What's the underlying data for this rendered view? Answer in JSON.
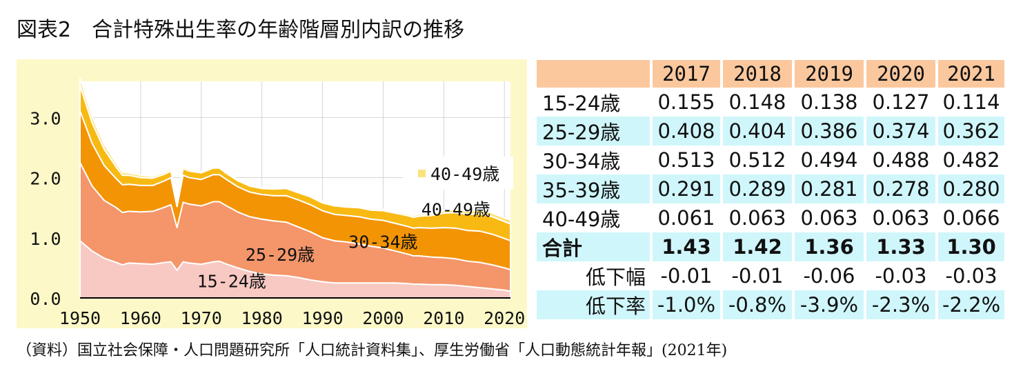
{
  "title": "図表2　合計特殊出生率の年齢階層別内訳の推移",
  "source": "（資料）国立社会保障・人口問題研究所「人口統計資料集」、厚生労働省「人口動態統計年報」(2021年)",
  "colors": {
    "panel_bg": "#fdf8c8",
    "header_bg": "#fbc89e",
    "row_cyan": "#cff6fb",
    "band_15_24": "#f8c9c3",
    "band_25_29": "#f4956a",
    "band_30_34": "#f39404",
    "band_35_39": "#f8b913",
    "band_40_49": "#fbe37a"
  },
  "chart_data": {
    "type": "area",
    "stacked": true,
    "title": "合計特殊出生率の年齢階層別内訳の推移",
    "xlabel": "",
    "ylabel": "",
    "xlim": [
      1950,
      2021
    ],
    "ylim": [
      0,
      3.6
    ],
    "x_ticks": [
      "1950",
      "1960",
      "1970",
      "1980",
      "1990",
      "2000",
      "2010",
      "2020"
    ],
    "y_ticks": [
      "0.0",
      "1.0",
      "2.0",
      "3.0"
    ],
    "grid": true,
    "x": [
      1950,
      1952,
      1954,
      1956,
      1957,
      1958,
      1960,
      1962,
      1964,
      1965,
      1966,
      1967,
      1968,
      1970,
      1972,
      1973,
      1974,
      1976,
      1978,
      1980,
      1982,
      1984,
      1986,
      1988,
      1990,
      1992,
      1994,
      1996,
      1998,
      2000,
      2002,
      2004,
      2005,
      2006,
      2008,
      2010,
      2012,
      2014,
      2016,
      2018,
      2020,
      2021
    ],
    "series": [
      {
        "name": "15-24歳",
        "label": "15-24歳",
        "values": [
          0.95,
          0.78,
          0.66,
          0.59,
          0.55,
          0.58,
          0.57,
          0.56,
          0.59,
          0.6,
          0.46,
          0.6,
          0.58,
          0.56,
          0.6,
          0.61,
          0.57,
          0.5,
          0.44,
          0.4,
          0.38,
          0.37,
          0.34,
          0.3,
          0.27,
          0.25,
          0.25,
          0.25,
          0.25,
          0.25,
          0.25,
          0.24,
          0.23,
          0.23,
          0.22,
          0.22,
          0.21,
          0.19,
          0.17,
          0.15,
          0.13,
          0.11
        ]
      },
      {
        "name": "25-29歳",
        "label": "25-29歳",
        "values": [
          1.3,
          1.08,
          0.96,
          0.91,
          0.87,
          0.86,
          0.86,
          0.88,
          0.92,
          0.95,
          0.71,
          0.99,
          0.98,
          0.97,
          1.0,
          0.99,
          0.97,
          0.93,
          0.91,
          0.91,
          0.9,
          0.89,
          0.84,
          0.8,
          0.73,
          0.7,
          0.68,
          0.65,
          0.61,
          0.58,
          0.53,
          0.49,
          0.47,
          0.47,
          0.46,
          0.45,
          0.44,
          0.42,
          0.42,
          0.4,
          0.37,
          0.36
        ]
      },
      {
        "name": "30-34歳",
        "label": "30-34歳",
        "values": [
          0.86,
          0.71,
          0.58,
          0.48,
          0.46,
          0.45,
          0.44,
          0.43,
          0.44,
          0.45,
          0.35,
          0.45,
          0.44,
          0.44,
          0.45,
          0.45,
          0.44,
          0.42,
          0.41,
          0.41,
          0.42,
          0.44,
          0.45,
          0.45,
          0.45,
          0.44,
          0.44,
          0.45,
          0.45,
          0.46,
          0.46,
          0.46,
          0.46,
          0.47,
          0.48,
          0.5,
          0.51,
          0.51,
          0.52,
          0.51,
          0.49,
          0.48
        ]
      },
      {
        "name": "35-39歳",
        "label": "35-39歳",
        "values": [
          0.42,
          0.34,
          0.27,
          0.19,
          0.16,
          0.15,
          0.13,
          0.12,
          0.11,
          0.11,
          0.09,
          0.11,
          0.11,
          0.11,
          0.11,
          0.11,
          0.1,
          0.1,
          0.1,
          0.1,
          0.11,
          0.12,
          0.12,
          0.13,
          0.13,
          0.14,
          0.14,
          0.15,
          0.15,
          0.16,
          0.17,
          0.18,
          0.18,
          0.19,
          0.21,
          0.24,
          0.26,
          0.27,
          0.29,
          0.29,
          0.28,
          0.28
        ]
      },
      {
        "name": "40-49歳",
        "label": "40-49歳",
        "values": [
          0.12,
          0.1,
          0.08,
          0.06,
          0.05,
          0.04,
          0.04,
          0.03,
          0.03,
          0.03,
          0.02,
          0.03,
          0.03,
          0.02,
          0.02,
          0.02,
          0.02,
          0.02,
          0.02,
          0.02,
          0.02,
          0.02,
          0.02,
          0.02,
          0.02,
          0.02,
          0.02,
          0.02,
          0.02,
          0.02,
          0.02,
          0.03,
          0.03,
          0.03,
          0.03,
          0.04,
          0.05,
          0.05,
          0.06,
          0.06,
          0.06,
          0.07
        ]
      }
    ],
    "legend": [
      {
        "name": "40-49歳",
        "label": "40-49歳"
      }
    ],
    "legend_position": "right-top"
  },
  "table": {
    "headers": [
      "",
      "2017",
      "2018",
      "2019",
      "2020",
      "2021"
    ],
    "rows": [
      {
        "label": "15-24歳",
        "values": [
          "0.155",
          "0.148",
          "0.138",
          "0.127",
          "0.114"
        ]
      },
      {
        "label": "25-29歳",
        "values": [
          "0.408",
          "0.404",
          "0.386",
          "0.374",
          "0.362"
        ]
      },
      {
        "label": "30-34歳",
        "values": [
          "0.513",
          "0.512",
          "0.494",
          "0.488",
          "0.482"
        ]
      },
      {
        "label": "35-39歳",
        "values": [
          "0.291",
          "0.289",
          "0.281",
          "0.278",
          "0.280"
        ]
      },
      {
        "label": "40-49歳",
        "values": [
          "0.061",
          "0.063",
          "0.063",
          "0.063",
          "0.066"
        ]
      },
      {
        "label": "合計",
        "values": [
          "1.43",
          "1.42",
          "1.36",
          "1.33",
          "1.30"
        ]
      },
      {
        "label": "低下幅",
        "values": [
          "-0.01",
          "-0.01",
          "-0.06",
          "-0.03",
          "-0.03"
        ]
      },
      {
        "label": "低下率",
        "values": [
          "-1.0%",
          "-0.8%",
          "-3.9%",
          "-2.3%",
          "-2.2%"
        ]
      }
    ]
  }
}
